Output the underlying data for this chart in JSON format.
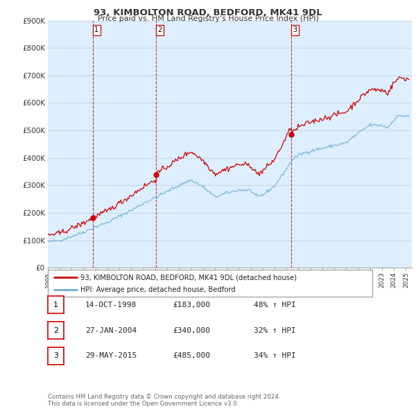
{
  "title_line1": "93, KIMBOLTON ROAD, BEDFORD, MK41 9DL",
  "title_line2": "Price paid vs. HM Land Registry's House Price Index (HPI)",
  "ylim": [
    0,
    900000
  ],
  "yticks": [
    0,
    100000,
    200000,
    300000,
    400000,
    500000,
    600000,
    700000,
    800000,
    900000
  ],
  "ytick_labels": [
    "£0",
    "£100K",
    "£200K",
    "£300K",
    "£400K",
    "£500K",
    "£600K",
    "£700K",
    "£800K",
    "£900K"
  ],
  "xlim_start": 1995.0,
  "xlim_end": 2025.5,
  "xtick_years": [
    1995,
    1996,
    1997,
    1998,
    1999,
    2000,
    2001,
    2002,
    2003,
    2004,
    2005,
    2006,
    2007,
    2008,
    2009,
    2010,
    2011,
    2012,
    2013,
    2014,
    2015,
    2016,
    2017,
    2018,
    2019,
    2020,
    2021,
    2022,
    2023,
    2024,
    2025
  ],
  "hpi_color": "#6baed6",
  "price_color": "#cc0000",
  "vline_color": "#cc0000",
  "grid_color": "#c8d8e8",
  "chart_bg": "#ddeeff",
  "sale_points": [
    {
      "year": 1998.79,
      "price": 183000,
      "label": "1"
    },
    {
      "year": 2004.07,
      "price": 340000,
      "label": "2"
    },
    {
      "year": 2015.41,
      "price": 485000,
      "label": "3"
    }
  ],
  "legend_line1": "93, KIMBOLTON ROAD, BEDFORD, MK41 9DL (detached house)",
  "legend_line2": "HPI: Average price, detached house, Bedford",
  "table_data": [
    {
      "num": "1",
      "date": "14-OCT-1998",
      "price": "£183,000",
      "hpi": "48% ↑ HPI"
    },
    {
      "num": "2",
      "date": "27-JAN-2004",
      "price": "£340,000",
      "hpi": "32% ↑ HPI"
    },
    {
      "num": "3",
      "date": "29-MAY-2015",
      "price": "£485,000",
      "hpi": "34% ↑ HPI"
    }
  ],
  "footnote": "Contains HM Land Registry data © Crown copyright and database right 2024.\nThis data is licensed under the Open Government Licence v3.0.",
  "background_color": "#ffffff"
}
